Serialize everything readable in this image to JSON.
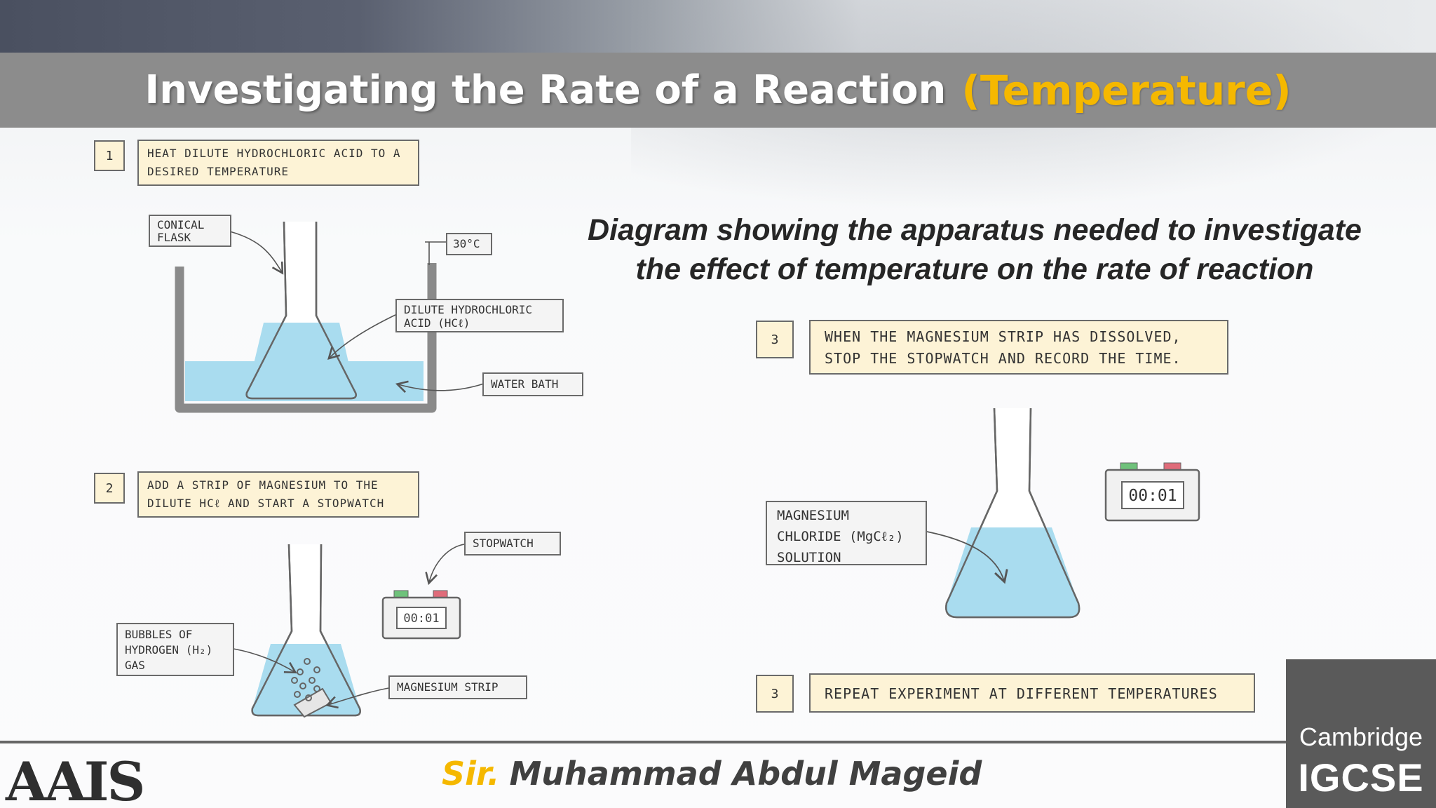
{
  "title": {
    "main": "Investigating the Rate of a Reaction",
    "accent": "(Temperature)"
  },
  "caption": {
    "line1": "Diagram showing the apparatus needed to investigate",
    "line2": "the effect of temperature on the rate of reaction"
  },
  "steps": [
    {
      "number": "1",
      "line1": "HEAT  DILUTE  HYDROCHLORIC  ACID  TO  A",
      "line2": "DESIRED  TEMPERATURE"
    },
    {
      "number": "2",
      "line1": "ADD  A  STRIP  OF  MAGNESIUM  TO  THE",
      "line2": "DILUTE  HCℓ  AND  START  A  STOPWATCH"
    },
    {
      "number": "3",
      "line1": "WHEN  THE  MAGNESIUM  STRIP  HAS  DISSOLVED,",
      "line2": "STOP  THE  STOPWATCH  AND  RECORD  THE  TIME."
    },
    {
      "number": "3",
      "line1": "REPEAT  EXPERIMENT  AT  DIFFERENT  TEMPERATURES"
    }
  ],
  "labels": {
    "conical_flask": {
      "line1": "CONICAL",
      "line2": "FLASK"
    },
    "temperature": "30°C",
    "dilute_hcl": {
      "line1": "DILUTE HYDROCHLORIC",
      "line2": "ACID  (HCℓ)"
    },
    "water_bath": "WATER  BATH",
    "stopwatch": "STOPWATCH",
    "bubbles": {
      "line1": "BUBBLES  OF",
      "line2": "HYDROGEN  (H₂)",
      "line3": "GAS"
    },
    "magnesium_strip": "MAGNESIUM  STRIP",
    "mgcl2": {
      "line1": "MAGNESIUM",
      "line2": "CHLORIDE  (MgCℓ₂)",
      "line3": "SOLUTION"
    }
  },
  "stopwatch_time_small": "00:01",
  "stopwatch_time_large": "00:01",
  "footer": {
    "logo": "AAIS",
    "author_prefix": "Sir.",
    "author_name": "Muhammad Abdul Mageid",
    "badge_line1": "Cambridge",
    "badge_line2": "IGCSE"
  },
  "colors": {
    "accent": "#f5b800",
    "liquid": "#a9dcef",
    "step_fill": "#fdf3d6",
    "title_bar": "#8c8c8c"
  }
}
